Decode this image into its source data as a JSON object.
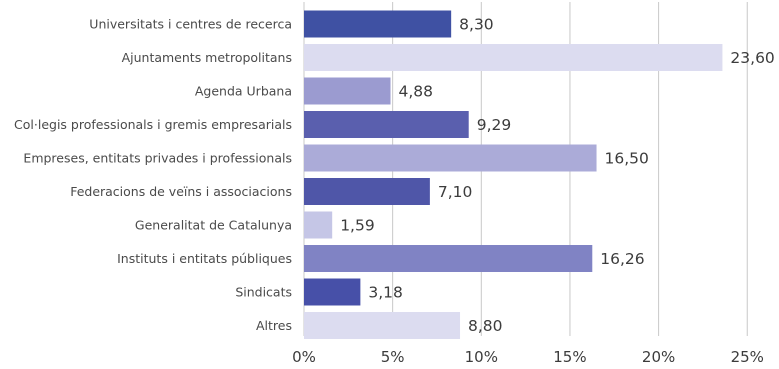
{
  "chart_data": {
    "type": "bar",
    "orientation": "horizontal",
    "categories": [
      "Universitats i centres de recerca",
      "Ajuntaments metropolitans",
      "Agenda Urbana",
      "Col·legis professionals i gremis empresarials",
      "Empreses, entitats privades i professionals",
      "Federacions de veïns i associacions",
      "Generalitat de Catalunya",
      "Instituts i entitats públiques",
      "Sindicats",
      "Altres"
    ],
    "values": [
      8.3,
      23.6,
      4.88,
      9.29,
      16.5,
      7.1,
      1.59,
      16.26,
      3.18,
      8.8
    ],
    "value_labels": [
      "8,30",
      "23,60",
      "4,88",
      "9,29",
      "16,50",
      "7,10",
      "1,59",
      "16,26",
      "3,18",
      "8,80"
    ],
    "bar_colors": [
      "#3f51a3",
      "#dcdcf0",
      "#9b9bd0",
      "#5a5fae",
      "#ababd8",
      "#4f56a8",
      "#c5c6e6",
      "#8083c4",
      "#4750a8",
      "#dcdcf0"
    ],
    "xlim": [
      0,
      25
    ],
    "xticks": [
      0,
      5,
      10,
      15,
      20,
      25
    ],
    "xtick_labels": [
      "0%",
      "5%",
      "10%",
      "15%",
      "20%",
      "25%"
    ],
    "grid": "vertical",
    "legend": "none"
  }
}
